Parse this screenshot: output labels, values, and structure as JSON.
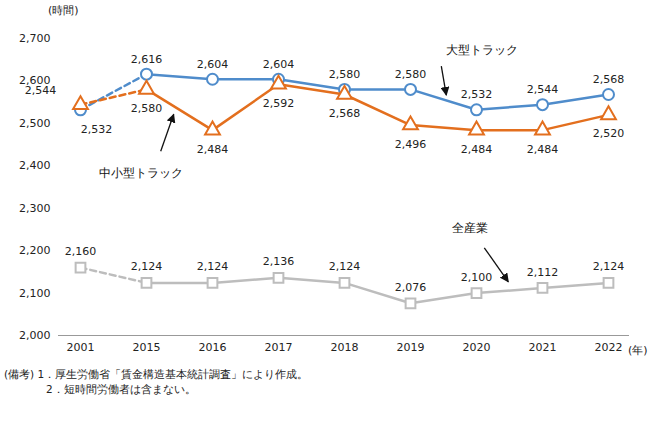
{
  "chart_data": {
    "type": "line",
    "y_label": "(時間)",
    "x_label": "(年)",
    "categories": [
      "2001",
      "2015",
      "2016",
      "2017",
      "2018",
      "2019",
      "2020",
      "2021",
      "2022"
    ],
    "series": [
      {
        "name": "大型トラック",
        "color": "#4f8ccb",
        "marker": "circle",
        "values": [
          2532,
          2616,
          2604,
          2604,
          2580,
          2580,
          2532,
          2544,
          2568
        ],
        "value_labels": [
          "2,532",
          "2,616",
          "2,604",
          "2,604",
          "2,580",
          "2,580",
          "2,532",
          "2,544",
          "2,568"
        ]
      },
      {
        "name": "中小型トラック",
        "color": "#e36f1e",
        "marker": "triangle",
        "values": [
          2544,
          2580,
          2484,
          2592,
          2568,
          2496,
          2484,
          2484,
          2520
        ],
        "value_labels": [
          "2,544",
          "2,580",
          "2,484",
          "2,592",
          "2,568",
          "2,496",
          "2,484",
          "2,484",
          "2,520"
        ]
      },
      {
        "name": "全産業",
        "color": "#bdbdbd",
        "marker": "square",
        "values": [
          2160,
          2124,
          2124,
          2136,
          2124,
          2076,
          2100,
          2112,
          2124
        ],
        "value_labels": [
          "2,160",
          "2,124",
          "2,124",
          "2,136",
          "2,124",
          "2,076",
          "2,100",
          "2,112",
          "2,124"
        ]
      }
    ],
    "ylim": [
      2000,
      2700
    ],
    "yticks": [
      {
        "value": 2000,
        "label": "2,000"
      },
      {
        "value": 2100,
        "label": "2,100"
      },
      {
        "value": 2200,
        "label": "2,200"
      },
      {
        "value": 2300,
        "label": "2,300"
      },
      {
        "value": 2400,
        "label": "2,400"
      },
      {
        "value": 2500,
        "label": "2,500"
      },
      {
        "value": 2600,
        "label": "2,600"
      },
      {
        "value": 2700,
        "label": "2,700"
      }
    ],
    "grid": false,
    "data_labels": true,
    "caption": [
      "(備考) 1．厚生労働省「賃金構造基本統計調査」により作成。",
      "2．短時間労働者は含まない。"
    ]
  }
}
